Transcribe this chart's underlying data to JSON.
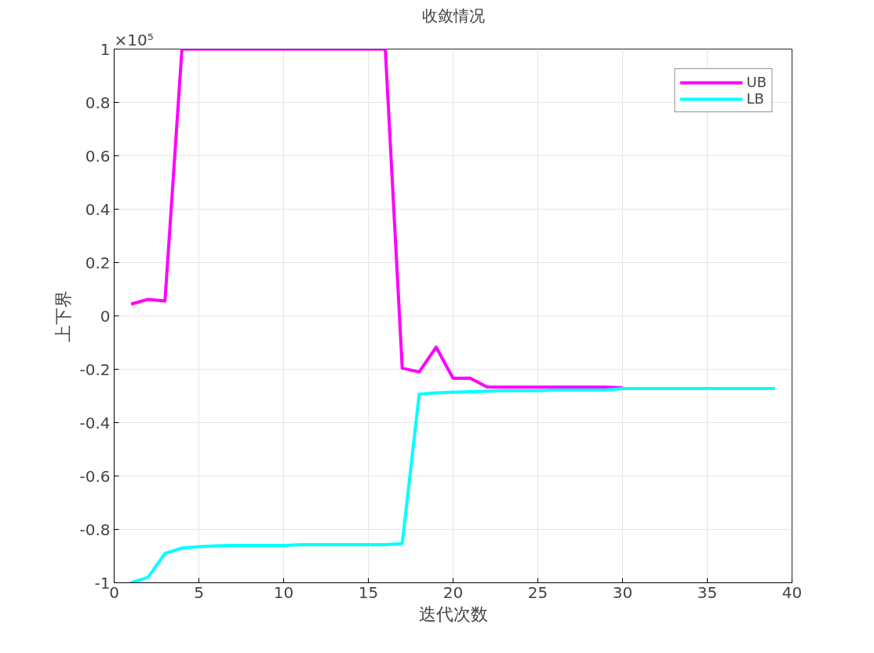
{
  "chart_data": {
    "type": "line",
    "title": "收敛情况",
    "xlabel": "迭代次数",
    "ylabel": "上下界",
    "annotations": [
      "×10⁵"
    ],
    "x": [
      1,
      2,
      3,
      4,
      5,
      6,
      7,
      8,
      9,
      10,
      11,
      12,
      13,
      14,
      15,
      16,
      17,
      18,
      19,
      20,
      21,
      22,
      23,
      24,
      25,
      26,
      27,
      28,
      29,
      30,
      31,
      32,
      33,
      34,
      35,
      36,
      37,
      38,
      39
    ],
    "series": [
      {
        "name": "UB",
        "color": "#ff00ff",
        "values": [
          0.044,
          0.062,
          0.056,
          1,
          1,
          1,
          1,
          1,
          1,
          1,
          1,
          1,
          1,
          1,
          1,
          1,
          -0.196,
          -0.21,
          -0.117,
          -0.234,
          -0.233,
          -0.266,
          -0.267,
          -0.267,
          -0.267,
          -0.267,
          -0.267,
          -0.267,
          -0.267,
          -0.269,
          null,
          null,
          null,
          null,
          null,
          null,
          null,
          null,
          null
        ]
      },
      {
        "name": "LB",
        "color": "#00ffff",
        "values": [
          -1,
          -0.98,
          -0.89,
          -0.87,
          -0.865,
          -0.862,
          -0.86,
          -0.86,
          -0.86,
          -0.86,
          -0.857,
          -0.857,
          -0.857,
          -0.857,
          -0.857,
          -0.857,
          -0.853,
          -0.293,
          -0.288,
          -0.286,
          -0.284,
          -0.282,
          -0.28,
          -0.28,
          -0.28,
          -0.278,
          -0.278,
          -0.278,
          -0.278,
          -0.272,
          -0.272,
          -0.272,
          -0.272,
          -0.272,
          -0.272,
          -0.272,
          -0.272,
          -0.272,
          -0.272
        ]
      }
    ],
    "xlim": [
      0,
      40
    ],
    "xticks": [
      0,
      5,
      10,
      15,
      20,
      25,
      30,
      35,
      40
    ],
    "ylim": [
      -1,
      1
    ],
    "yticks": [
      -1,
      -0.8,
      -0.6,
      -0.4,
      -0.2,
      0,
      0.2,
      0.4,
      0.6,
      0.8,
      1
    ],
    "grid": true,
    "legend": "top right",
    "line_style": "solid",
    "marker": "none"
  }
}
